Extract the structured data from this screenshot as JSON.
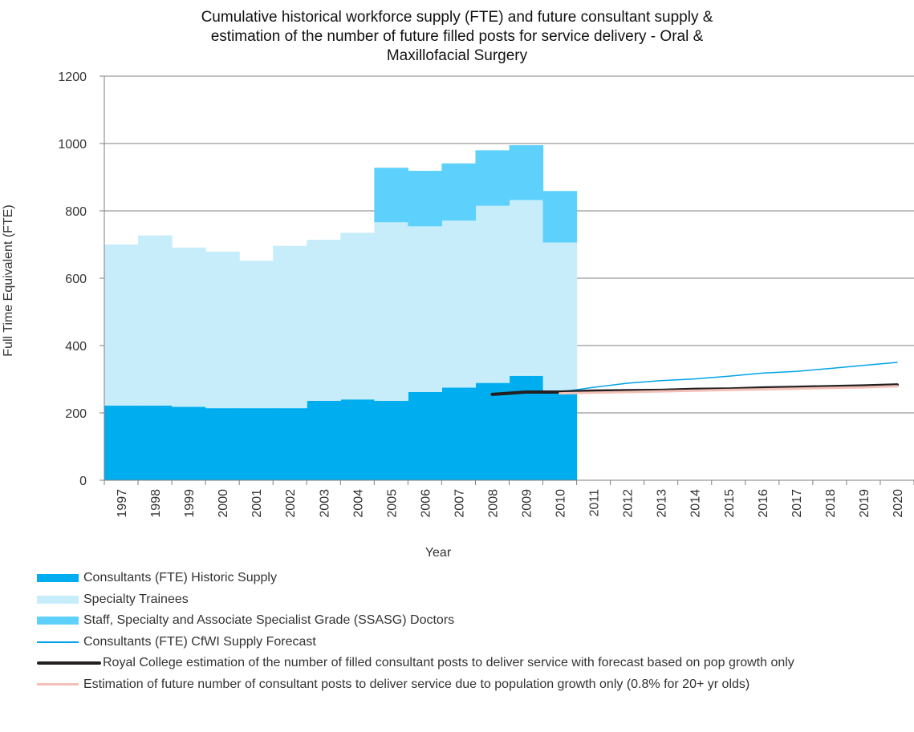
{
  "chart_data": {
    "type": "area",
    "title": [
      "Cumulative historical workforce supply (FTE) and future consultant supply &",
      "estimation of the number of future filled posts for service delivery - Oral &",
      "Maxillofacial Surgery"
    ],
    "xlabel": "Year",
    "ylabel": "Full Time Equivalent (FTE)",
    "ylim": [
      0,
      1200
    ],
    "yticks": [
      0,
      200,
      400,
      600,
      800,
      1000,
      1200
    ],
    "x": [
      "1997",
      "1998",
      "1999",
      "2000",
      "2001",
      "2002",
      "2003",
      "2004",
      "2005",
      "2006",
      "2007",
      "2008",
      "2009",
      "2010",
      "2011",
      "2012",
      "2013",
      "2014",
      "2015",
      "2016",
      "2017",
      "2018",
      "2019",
      "2020"
    ],
    "grid": "horizontal",
    "legend_position": "bottom",
    "stacked_series": [
      {
        "name": "Consultants (FTE) Historic Supply",
        "color": "#00aeef",
        "values": [
          222,
          222,
          218,
          214,
          214,
          214,
          236,
          240,
          236,
          262,
          275,
          289,
          310,
          262
        ]
      },
      {
        "name": "Specialty Trainees",
        "color": "#c7edfb",
        "values": [
          478,
          505,
          473,
          465,
          438,
          482,
          478,
          495,
          530,
          492,
          496,
          526,
          522,
          444
        ]
      },
      {
        "name": "Staff, Specialty and Associate Specialist Grade (SSASG) Doctors",
        "color": "#5dd1fc",
        "values": [
          0,
          0,
          0,
          0,
          0,
          0,
          0,
          0,
          162,
          165,
          170,
          165,
          163,
          153
        ]
      }
    ],
    "line_series": [
      {
        "name": "Consultants (FTE) CfWI Supply Forecast",
        "color": "#00a3e8",
        "width": 1.5,
        "x": [
          "2010",
          "2011",
          "2012",
          "2013",
          "2014",
          "2015",
          "2016",
          "2017",
          "2018",
          "2019",
          "2020"
        ],
        "values": [
          262,
          276,
          288,
          296,
          301,
          309,
          318,
          323,
          332,
          341,
          350
        ]
      },
      {
        "name": "Royal College estimation of the number of filled consultant posts to deliver service with forecast based on pop growth only",
        "color": "#231f20",
        "width": 4,
        "x": [
          "2008",
          "2009",
          "2010",
          "2011",
          "2012",
          "2013",
          "2014",
          "2015",
          "2016",
          "2017",
          "2018",
          "2019",
          "2020"
        ],
        "values": [
          255,
          262,
          262,
          265,
          266,
          267,
          270,
          271,
          274,
          276,
          278,
          280,
          283
        ]
      },
      {
        "name": "Estimation of future number of consultant posts to deliver service due to population growth only (0.8% for 20+ yr olds)",
        "color": "#f3c1b8",
        "width": 3,
        "x": [
          "2010",
          "2011",
          "2012",
          "2013",
          "2014",
          "2015",
          "2016",
          "2017",
          "2018",
          "2019",
          "2020"
        ],
        "values": [
          258,
          260,
          262,
          264,
          266,
          268,
          270,
          272,
          274,
          276,
          279
        ]
      }
    ]
  }
}
